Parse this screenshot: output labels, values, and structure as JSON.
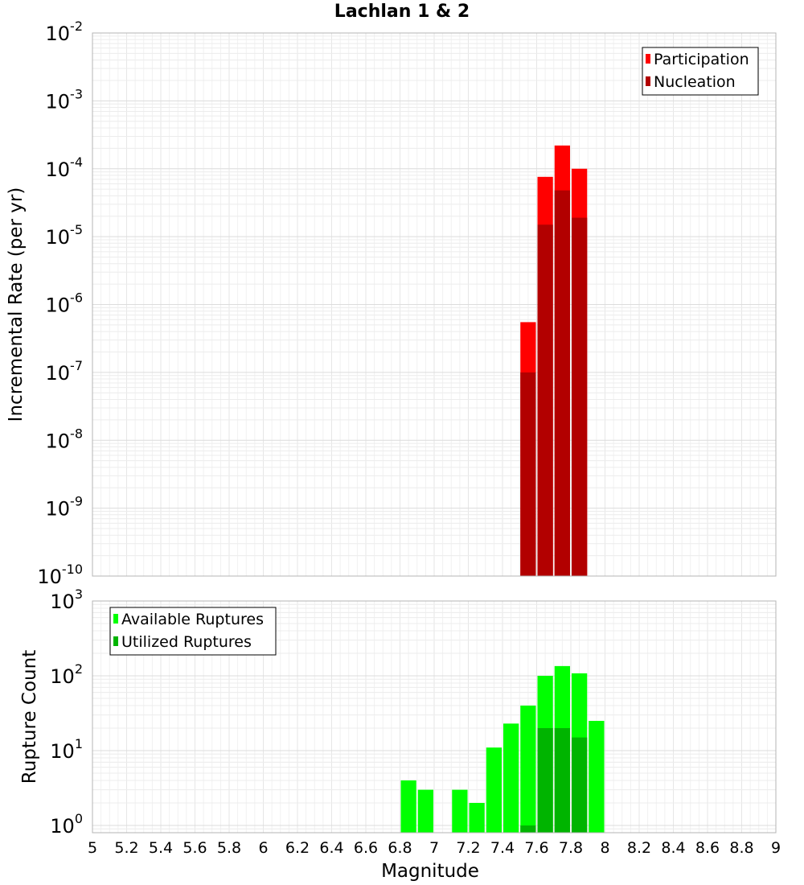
{
  "title": "Lachlan 1 & 2",
  "xlabel": "Magnitude",
  "x_ticks": [
    "5",
    "5.2",
    "5.4",
    "5.6",
    "5.8",
    "6",
    "6.2",
    "6.4",
    "6.6",
    "6.8",
    "7",
    "7.2",
    "7.4",
    "7.6",
    "7.8",
    "8",
    "8.2",
    "8.4",
    "8.6",
    "8.8",
    "9"
  ],
  "chart_data": [
    {
      "type": "bar",
      "ylabel": "Incremental Rate (per yr)",
      "yscale": "log",
      "ylim": [
        1e-10,
        0.01
      ],
      "xlim": [
        5,
        9
      ],
      "bar_width": 0.1,
      "y_tick_exponents": [
        "-2",
        "-3",
        "-4",
        "-5",
        "-6",
        "-7",
        "-8",
        "-9",
        "-10"
      ],
      "grid": true,
      "legend_position": "top-right",
      "series": [
        {
          "name": "Participation",
          "color": "#ff0000",
          "x": [
            7.55,
            7.65,
            7.75,
            7.85
          ],
          "values": [
            5.5e-07,
            7.6e-05,
            0.00022,
            0.0001
          ]
        },
        {
          "name": "Nucleation",
          "color": "#b20000",
          "x": [
            7.55,
            7.65,
            7.75,
            7.85
          ],
          "values": [
            1e-07,
            1.5e-05,
            4.8e-05,
            1.9e-05
          ]
        }
      ]
    },
    {
      "type": "bar",
      "ylabel": "Rupture Count",
      "yscale": "log",
      "ylim": [
        0.8,
        1000
      ],
      "xlim": [
        5,
        9
      ],
      "bar_width": 0.1,
      "y_tick_exponents": [
        "3",
        "2",
        "1",
        "0"
      ],
      "grid": true,
      "legend_position": "top-left",
      "series": [
        {
          "name": "Available Ruptures",
          "color": "#00ff00",
          "x": [
            6.85,
            6.95,
            7.15,
            7.25,
            7.35,
            7.45,
            7.55,
            7.65,
            7.75,
            7.85,
            7.95
          ],
          "values": [
            4,
            3,
            3,
            2,
            11,
            23,
            40,
            100,
            135,
            108,
            25
          ]
        },
        {
          "name": "Utilized Ruptures",
          "color": "#00b400",
          "x": [
            7.55,
            7.65,
            7.75,
            7.85
          ],
          "values": [
            1,
            20,
            20,
            15
          ]
        }
      ]
    }
  ]
}
